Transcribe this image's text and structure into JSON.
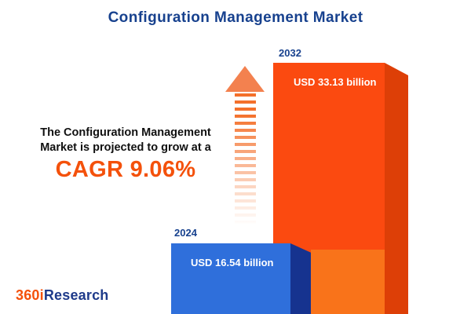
{
  "title": "Configuration Management Market",
  "description": {
    "line1": "The Configuration Management",
    "line2": "Market is projected to grow at a",
    "cagr": "CAGR 9.06%"
  },
  "logo": {
    "part1": "360i",
    "part2": "Research"
  },
  "colors": {
    "navy": "#17418E",
    "accent_orange": "#F4510B",
    "bar_blue": "#2F6FDB",
    "bar_blue_side": "#16338F",
    "bar_orange": "#FB4A10",
    "bar_orange_side": "#DD3F07",
    "bar_orange_light": "#F9731A"
  },
  "chart_data": {
    "type": "bar",
    "title": "Configuration Management Market",
    "categories": [
      "2024",
      "2032"
    ],
    "values": [
      16.54,
      33.13
    ],
    "unit": "USD billion",
    "value_labels": [
      "USD 16.54 billion",
      "USD 33.13 billion"
    ],
    "cagr_pct": 9.06,
    "ylim": [
      0,
      35
    ],
    "legend": "none",
    "grid": false,
    "annotations": [
      "The Configuration Management Market is projected to grow at a CAGR 9.06%"
    ]
  }
}
